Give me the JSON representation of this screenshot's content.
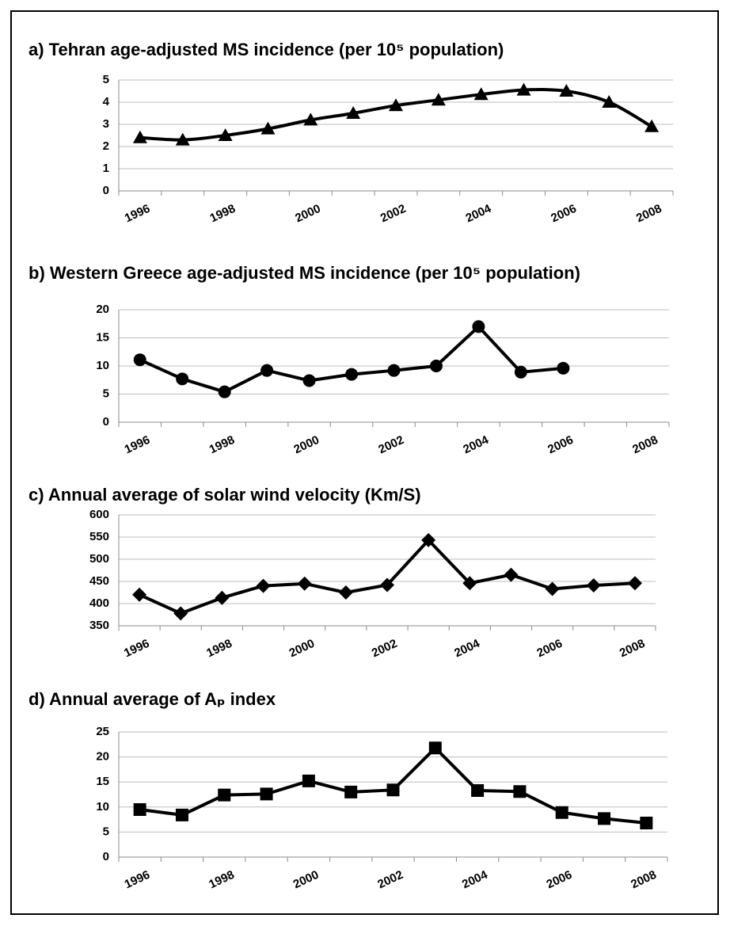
{
  "chart_data": [
    {
      "type": "line",
      "title": "a) Tehran age-adjusted MS incidence (per 10⁵ population)",
      "categories": [
        "1996",
        null,
        "1998",
        null,
        "2000",
        null,
        "2002",
        null,
        "2004",
        null,
        "2006",
        null,
        "2008"
      ],
      "values": [
        2.4,
        2.3,
        2.5,
        2.8,
        3.2,
        3.5,
        3.85,
        4.1,
        4.35,
        4.55,
        4.5,
        4.0,
        2.9
      ],
      "color": "#000000",
      "marker": "triangle",
      "smooth": true,
      "ylim": [
        0,
        5
      ],
      "yticks": [
        0,
        1,
        2,
        3,
        4,
        5
      ],
      "grid": true
    },
    {
      "type": "line",
      "title": "b) Western Greece  age-adjusted MS incidence (per 10⁵ population)",
      "categories": [
        "1996",
        null,
        "1998",
        null,
        "2000",
        null,
        "2002",
        null,
        "2004",
        null,
        "2006",
        null,
        "2008"
      ],
      "values": [
        11.1,
        7.7,
        5.4,
        9.2,
        7.4,
        8.5,
        9.2,
        10,
        17,
        8.9,
        9.6,
        null,
        null
      ],
      "color": "#000000",
      "marker": "circle",
      "smooth": false,
      "ylim": [
        0,
        20
      ],
      "yticks": [
        0,
        5,
        10,
        15,
        20
      ],
      "grid": true
    },
    {
      "type": "line",
      "title": "c) Annual average of solar wind velocity (Km/S)",
      "categories": [
        "1996",
        null,
        "1998",
        null,
        "2000",
        null,
        "2002",
        null,
        "2004",
        null,
        "2006",
        null,
        "2008"
      ],
      "values": [
        420,
        378,
        413,
        440,
        445,
        425,
        442,
        543,
        446,
        465,
        433,
        441,
        446
      ],
      "color": "#000000",
      "marker": "diamond",
      "smooth": false,
      "ylim": [
        350,
        600
      ],
      "yticks": [
        350,
        400,
        450,
        500,
        550,
        600
      ],
      "grid": true
    },
    {
      "type": "line",
      "title": "d) Annual average of Aₚ index",
      "categories": [
        "1996",
        null,
        "1998",
        null,
        "2000",
        null,
        "2002",
        null,
        "2004",
        null,
        "2006",
        null,
        "2008"
      ],
      "values": [
        9.5,
        8.4,
        12.4,
        12.6,
        15.2,
        13,
        13.4,
        21.8,
        13.3,
        13.1,
        8.9,
        7.7,
        6.8
      ],
      "color": "#000000",
      "marker": "square",
      "smooth": false,
      "ylim": [
        0,
        25
      ],
      "yticks": [
        0,
        5,
        10,
        15,
        20,
        25
      ],
      "grid": true
    }
  ]
}
